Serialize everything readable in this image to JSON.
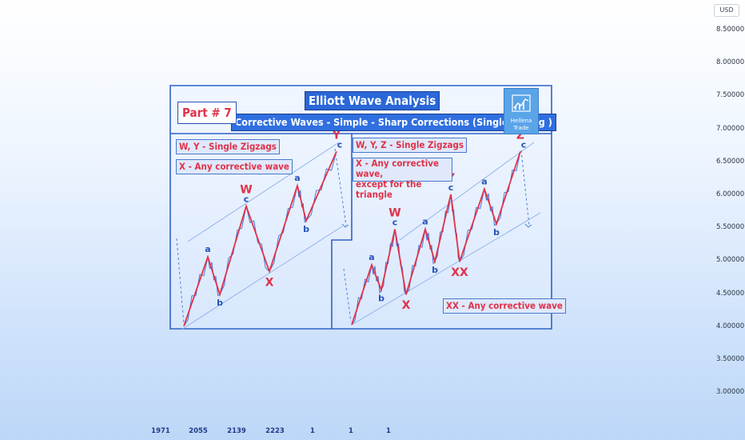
{
  "currency": "USD",
  "price_ticks": [
    "8.50000",
    "8.00000",
    "7.50000",
    "7.00000",
    "6.50000",
    "6.00000",
    "5.50000",
    "5.00000",
    "4.50000",
    "4.00000",
    "3.50000",
    "3.00000"
  ],
  "time_ticks": [
    "1971",
    "2055",
    "2139",
    "2223",
    "1",
    "1",
    "1"
  ],
  "title": "Elliott Wave Analysis",
  "subtitle": "Corrective Waves - Simple - Sharp Corrections (Single Zigzag )",
  "part": "Part # 7",
  "logo": {
    "line1": "Hellena",
    "line2": "Trade"
  },
  "left_panel": {
    "note1": "W, Y - Single Zigzags",
    "note2": "X - Any corrective wave"
  },
  "right_panel": {
    "note1": "W, Y, Z - Single Zigzags",
    "note2_line1": "X - Any corrective wave,",
    "note2_line2": "except for the triangle",
    "note3": "XX - Any corrective wave"
  },
  "colors": {
    "frame": "#2f62c7",
    "zigzag": "#e0324a",
    "subwave": "#3c6fd6",
    "label_red": "#e0324a",
    "label_blue": "#2553b8"
  },
  "chart_data": [
    {
      "type": "line",
      "panel": "left",
      "y_unit": "USD",
      "ylim": [
        3.0,
        8.5
      ],
      "waves": [
        {
          "label": "",
          "y": 4.0
        },
        {
          "label": "a",
          "y": 5.05
        },
        {
          "label": "b",
          "y": 4.48
        },
        {
          "label": "W",
          "y": 5.82
        },
        {
          "label": "X",
          "y": 4.83
        },
        {
          "label": "a",
          "y": 6.13
        },
        {
          "label": "b",
          "y": 5.6
        },
        {
          "label": "Y",
          "y": 6.65
        }
      ],
      "sub_labels": [
        "c",
        "c"
      ]
    },
    {
      "type": "line",
      "panel": "right",
      "y_unit": "USD",
      "ylim": [
        3.0,
        8.5
      ],
      "waves": [
        {
          "label": "",
          "y": 4.02
        },
        {
          "label": "a",
          "y": 4.93
        },
        {
          "label": "b",
          "y": 4.55
        },
        {
          "label": "W",
          "y": 5.47
        },
        {
          "label": "X",
          "y": 4.48
        },
        {
          "label": "a",
          "y": 5.47
        },
        {
          "label": "b",
          "y": 4.98
        },
        {
          "label": "Y",
          "y": 6.0
        },
        {
          "label": "XX",
          "y": 4.98
        },
        {
          "label": "a",
          "y": 6.08
        },
        {
          "label": "b",
          "y": 5.55
        },
        {
          "label": "Z",
          "y": 6.65
        }
      ],
      "sub_labels": [
        "c",
        "c",
        "c"
      ]
    }
  ]
}
